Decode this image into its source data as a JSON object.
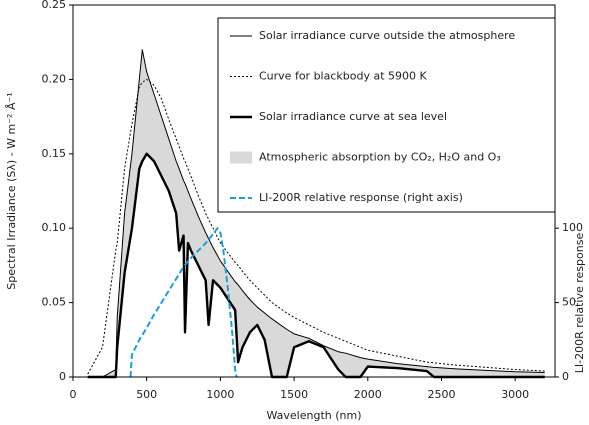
{
  "chart_data": {
    "type": "line",
    "xlabel": "Wavelength (nm)",
    "ylabel": "Spectral Irradiance (Sλ) - W m⁻² Å⁻¹",
    "y2label": "LI-200R relative response",
    "x": [
      100,
      200,
      290,
      300,
      350,
      400,
      450,
      470,
      500,
      550,
      600,
      650,
      700,
      720,
      750,
      760,
      780,
      800,
      850,
      900,
      920,
      950,
      1000,
      1100,
      1120,
      1150,
      1200,
      1250,
      1300,
      1350,
      1450,
      1500,
      1600,
      1700,
      1800,
      1850,
      1950,
      2000,
      2200,
      2400,
      2450,
      2600,
      3000,
      3200
    ],
    "series": [
      {
        "name": "Solar irradiance curve outside the atmosphere",
        "color": "#000000",
        "style": "thin",
        "values": [
          0,
          0,
          0.005,
          0.04,
          0.11,
          0.15,
          0.2,
          0.22,
          0.205,
          0.19,
          0.175,
          0.16,
          0.145,
          0.14,
          0.132,
          0.13,
          0.125,
          0.12,
          0.108,
          0.097,
          0.093,
          0.087,
          0.078,
          0.064,
          0.062,
          0.058,
          0.052,
          0.047,
          0.043,
          0.039,
          0.032,
          0.029,
          0.026,
          0.021,
          0.017,
          0.016,
          0.013,
          0.012,
          0.009,
          0.007,
          0.0065,
          0.0055,
          0.0035,
          0.003
        ]
      },
      {
        "name": "Curve for blackbody at 5900 K",
        "color": "#000000",
        "style": "dotted",
        "values": [
          0.002,
          0.02,
          0.085,
          0.09,
          0.14,
          0.17,
          0.195,
          0.198,
          0.2,
          0.196,
          0.187,
          0.173,
          0.16,
          0.155,
          0.147,
          0.145,
          0.14,
          0.135,
          0.122,
          0.11,
          0.106,
          0.1,
          0.09,
          0.077,
          0.075,
          0.071,
          0.065,
          0.06,
          0.055,
          0.05,
          0.043,
          0.04,
          0.035,
          0.03,
          0.026,
          0.024,
          0.02,
          0.018,
          0.014,
          0.01,
          0.0095,
          0.008,
          0.005,
          0.004
        ]
      },
      {
        "name": "Solar irradiance curve at sea level",
        "color": "#000000",
        "style": "thick",
        "values": [
          0,
          0,
          0,
          0.02,
          0.07,
          0.1,
          0.14,
          0.145,
          0.15,
          0.145,
          0.135,
          0.125,
          0.11,
          0.085,
          0.095,
          0.03,
          0.09,
          0.085,
          0.075,
          0.065,
          0.035,
          0.065,
          0.06,
          0.045,
          0.01,
          0.02,
          0.03,
          0.035,
          0.025,
          0,
          0,
          0.02,
          0.024,
          0.02,
          0.005,
          0,
          0,
          0.007,
          0.006,
          0.004,
          0,
          0,
          0,
          0
        ]
      },
      {
        "name": "Atmospheric absorption by CO₂, H₂O and O₃",
        "color": "#d9d9d9",
        "style": "area",
        "values": [
          0,
          0,
          0.005,
          0.02,
          0.04,
          0.05,
          0.06,
          0.075,
          0.055,
          0.045,
          0.04,
          0.035,
          0.035,
          0.055,
          0.037,
          0.1,
          0.035,
          0.035,
          0.033,
          0.032,
          0.058,
          0.022,
          0.018,
          0.019,
          0.052,
          0.038,
          0.022,
          0.012,
          0.018,
          0.039,
          0.032,
          0.009,
          0.002,
          0.001,
          0.012,
          0.016,
          0.013,
          0.005,
          0.003,
          0.003,
          0.0065,
          0.0055,
          0.0035,
          0.003
        ]
      },
      {
        "name": "LI-200R relative response (right axis)",
        "color": "#1a9fd9",
        "style": "dashed",
        "axis": "y2",
        "x": [
          390,
          400,
          450,
          500,
          550,
          600,
          650,
          700,
          750,
          800,
          850,
          900,
          950,
          980,
          1000,
          1020,
          1050,
          1080,
          1100,
          1110
        ],
        "values": [
          0,
          15,
          25,
          33,
          42,
          50,
          58,
          66,
          74,
          80,
          85,
          90,
          96,
          100,
          97,
          85,
          60,
          30,
          5,
          0
        ]
      }
    ],
    "xlim": [
      0,
      3270
    ],
    "xticks": [
      0,
      500,
      1000,
      1500,
      2000,
      2500,
      3000
    ],
    "ylim": [
      0,
      0.25
    ],
    "yticks": [
      0,
      0.05,
      {
        "value": 0.1,
        "label": "0.10"
      },
      0.15,
      {
        "value": 0.2,
        "label": "0.20"
      },
      0.25
    ],
    "y2lim": [
      0,
      250
    ],
    "y2ticks": [
      0,
      50,
      100
    ],
    "legend": "upper right"
  }
}
